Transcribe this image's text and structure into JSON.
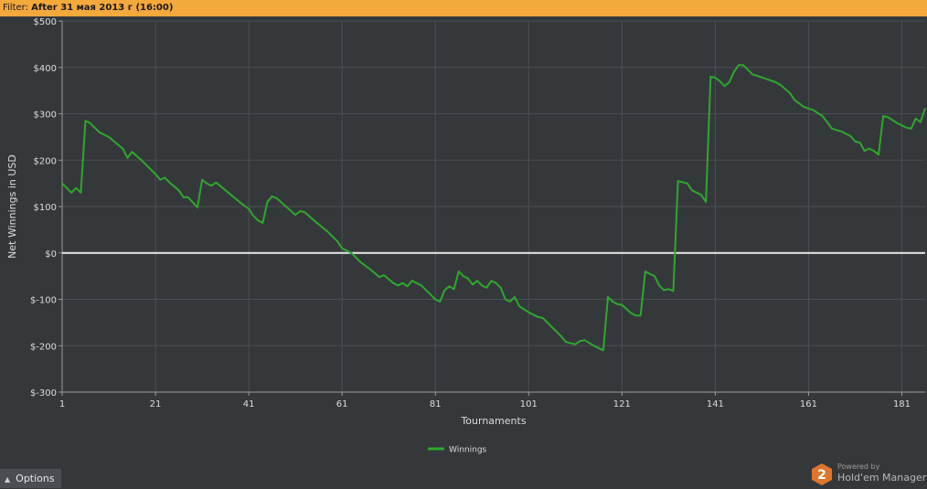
{
  "filter": {
    "prefix": "Filter: ",
    "value": "After 31 мая 2013 г (16:00)"
  },
  "options": {
    "label": "Options",
    "icon": "caret-up-icon"
  },
  "branding": {
    "powered_by": "Powered by",
    "product": "Hold'em Manager",
    "logo_number": "2",
    "logo_color": "#e0762c"
  },
  "colors": {
    "background": "#35383b",
    "grid": "#4b4f53",
    "zero_line": "#e8e8e8",
    "series": "#2ea82c",
    "filter_bar": "#f3a93c"
  },
  "chart_data": {
    "type": "line",
    "xlabel": "Tournaments",
    "ylabel": "Net Winnings in USD",
    "xlim": [
      1,
      186
    ],
    "ylim": [
      -300,
      500
    ],
    "x_ticks": [
      1,
      21,
      41,
      61,
      81,
      101,
      121,
      141,
      161,
      181
    ],
    "y_ticks": [
      500,
      400,
      300,
      200,
      100,
      0,
      -100,
      -200,
      -300
    ],
    "y_tick_labels": [
      "$500",
      "$400",
      "$300",
      "$200",
      "$100",
      "$0",
      "$-100",
      "$-200",
      "$-300"
    ],
    "grid": true,
    "legend_position": "bottom-center",
    "series": [
      {
        "name": "Winnings",
        "color": "#2ea82c",
        "points": [
          [
            1,
            150
          ],
          [
            3,
            130
          ],
          [
            4,
            140
          ],
          [
            5,
            130
          ],
          [
            6,
            285
          ],
          [
            7,
            280
          ],
          [
            9,
            260
          ],
          [
            11,
            250
          ],
          [
            14,
            225
          ],
          [
            15,
            205
          ],
          [
            16,
            218
          ],
          [
            18,
            200
          ],
          [
            21,
            170
          ],
          [
            22,
            158
          ],
          [
            23,
            162
          ],
          [
            24,
            152
          ],
          [
            26,
            135
          ],
          [
            27,
            120
          ],
          [
            28,
            120
          ],
          [
            30,
            98
          ],
          [
            31,
            158
          ],
          [
            32,
            150
          ],
          [
            33,
            145
          ],
          [
            34,
            152
          ],
          [
            36,
            135
          ],
          [
            39,
            110
          ],
          [
            41,
            95
          ],
          [
            42,
            80
          ],
          [
            43,
            70
          ],
          [
            44,
            65
          ],
          [
            45,
            110
          ],
          [
            46,
            122
          ],
          [
            47,
            118
          ],
          [
            49,
            100
          ],
          [
            51,
            82
          ],
          [
            52,
            90
          ],
          [
            53,
            88
          ],
          [
            55,
            70
          ],
          [
            58,
            45
          ],
          [
            60,
            25
          ],
          [
            61,
            10
          ],
          [
            62,
            5
          ],
          [
            63,
            0
          ],
          [
            65,
            -20
          ],
          [
            67,
            -35
          ],
          [
            69,
            -52
          ],
          [
            70,
            -48
          ],
          [
            72,
            -65
          ],
          [
            73,
            -70
          ],
          [
            74,
            -65
          ],
          [
            75,
            -72
          ],
          [
            76,
            -60
          ],
          [
            78,
            -70
          ],
          [
            80,
            -90
          ],
          [
            81,
            -100
          ],
          [
            82,
            -105
          ],
          [
            83,
            -80
          ],
          [
            84,
            -72
          ],
          [
            85,
            -78
          ],
          [
            86,
            -40
          ],
          [
            87,
            -50
          ],
          [
            88,
            -55
          ],
          [
            89,
            -68
          ],
          [
            90,
            -60
          ],
          [
            91,
            -70
          ],
          [
            92,
            -75
          ],
          [
            93,
            -60
          ],
          [
            94,
            -65
          ],
          [
            95,
            -75
          ],
          [
            96,
            -100
          ],
          [
            97,
            -105
          ],
          [
            98,
            -95
          ],
          [
            99,
            -115
          ],
          [
            101,
            -128
          ],
          [
            103,
            -138
          ],
          [
            104,
            -140
          ],
          [
            106,
            -160
          ],
          [
            108,
            -180
          ],
          [
            109,
            -192
          ],
          [
            111,
            -197
          ],
          [
            112,
            -190
          ],
          [
            113,
            -188
          ],
          [
            115,
            -200
          ],
          [
            116,
            -205
          ],
          [
            117,
            -210
          ],
          [
            118,
            -95
          ],
          [
            119,
            -105
          ],
          [
            120,
            -110
          ],
          [
            121,
            -112
          ],
          [
            123,
            -130
          ],
          [
            124,
            -135
          ],
          [
            125,
            -135
          ],
          [
            126,
            -40
          ],
          [
            128,
            -50
          ],
          [
            129,
            -70
          ],
          [
            130,
            -80
          ],
          [
            131,
            -78
          ],
          [
            132,
            -82
          ],
          [
            133,
            155
          ],
          [
            135,
            150
          ],
          [
            136,
            135
          ],
          [
            137,
            130
          ],
          [
            138,
            125
          ],
          [
            139,
            110
          ],
          [
            140,
            380
          ],
          [
            141,
            378
          ],
          [
            142,
            370
          ],
          [
            143,
            360
          ],
          [
            144,
            368
          ],
          [
            145,
            390
          ],
          [
            146,
            405
          ],
          [
            147,
            405
          ],
          [
            148,
            395
          ],
          [
            149,
            385
          ],
          [
            150,
            382
          ],
          [
            152,
            375
          ],
          [
            154,
            368
          ],
          [
            155,
            362
          ],
          [
            157,
            345
          ],
          [
            158,
            330
          ],
          [
            160,
            315
          ],
          [
            162,
            308
          ],
          [
            164,
            295
          ],
          [
            165,
            282
          ],
          [
            166,
            268
          ],
          [
            168,
            262
          ],
          [
            170,
            252
          ],
          [
            171,
            240
          ],
          [
            172,
            238
          ],
          [
            173,
            220
          ],
          [
            174,
            225
          ],
          [
            175,
            220
          ],
          [
            176,
            212
          ],
          [
            177,
            295
          ],
          [
            178,
            293
          ],
          [
            180,
            280
          ],
          [
            182,
            270
          ],
          [
            183,
            268
          ],
          [
            184,
            290
          ],
          [
            185,
            282
          ],
          [
            186,
            312
          ]
        ]
      }
    ]
  }
}
